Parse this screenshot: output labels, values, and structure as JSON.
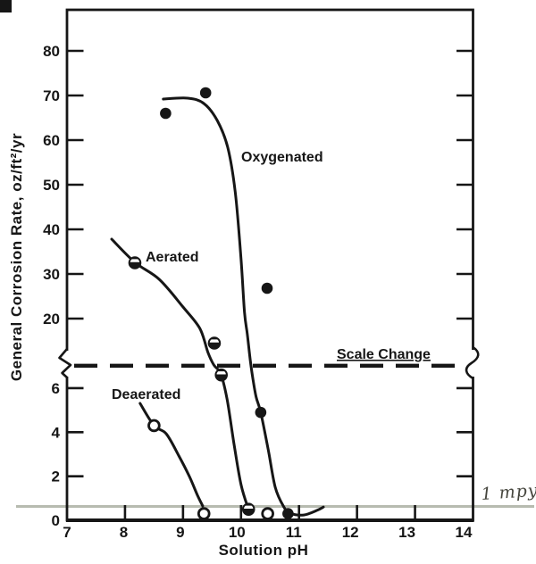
{
  "figure": {
    "background": "#ffffff",
    "ink": "#161616",
    "gray_line_color": "#b7bbb0",
    "handwriting_color": "#45453d"
  },
  "chart_data": {
    "type": "scatter",
    "title": "",
    "xlabel": "Solution pH",
    "ylabel": "General Corrosion Rate, oz/ft²/yr",
    "xlim": [
      7,
      14
    ],
    "x_ticks": [
      7,
      8,
      9,
      10,
      11,
      12,
      13,
      14
    ],
    "grid": false,
    "y_scale": {
      "unit": "oz/ft²/yr",
      "lower_ticks": [
        0,
        2,
        4,
        6
      ],
      "upper_ticks": [
        20,
        30,
        40,
        50,
        60,
        70,
        80
      ],
      "scale_break_between": [
        7,
        10
      ],
      "ylim_lower": [
        0,
        7
      ],
      "ylim_upper": [
        10,
        88
      ]
    },
    "reference_lines": [
      {
        "label": "1 mpy",
        "value": 0.63,
        "style": "solid-gray",
        "spans": "full-image-width"
      },
      {
        "label": "Scale Change",
        "value": "at-scale-break",
        "style": "heavy-dashed"
      }
    ],
    "series": [
      {
        "name": "Oxygenated",
        "marker": "filled-circle",
        "points": [
          [
            8.7,
            66
          ],
          [
            9.39,
            70.6
          ],
          [
            10.45,
            26.8
          ],
          [
            10.34,
            4.9
          ],
          [
            10.81,
            0.3
          ]
        ],
        "curve": [
          [
            8.66,
            69.2
          ],
          [
            9.08,
            69.4
          ],
          [
            9.36,
            68.2
          ],
          [
            9.59,
            64.4
          ],
          [
            9.77,
            58.4
          ],
          [
            9.9,
            48.4
          ],
          [
            10.0,
            33.4
          ],
          [
            10.06,
            21.4
          ],
          [
            10.11,
            16.4
          ],
          [
            10.16,
            10.6
          ],
          [
            10.2,
            6.5
          ],
          [
            10.26,
            5.6
          ],
          [
            10.34,
            4.9
          ],
          [
            10.47,
            3.2
          ],
          [
            10.59,
            1.5
          ],
          [
            10.74,
            0.6
          ],
          [
            10.85,
            0.32
          ],
          [
            11.08,
            0.24
          ],
          [
            11.31,
            0.45
          ],
          [
            11.42,
            0.6
          ]
        ]
      },
      {
        "name": "Aerated",
        "marker": "half-filled-circle",
        "points": [
          [
            8.17,
            32.5
          ],
          [
            9.54,
            14.5
          ],
          [
            9.66,
            6.6
          ],
          [
            10.13,
            0.5
          ]
        ],
        "curve": [
          [
            7.77,
            37.8
          ],
          [
            8.17,
            32.6
          ],
          [
            8.59,
            28.8
          ],
          [
            9.0,
            22.6
          ],
          [
            9.29,
            17.8
          ],
          [
            9.43,
            12.4
          ],
          [
            9.53,
            8.3
          ],
          [
            9.65,
            6.65
          ],
          [
            9.76,
            5.5
          ],
          [
            9.88,
            3.45
          ],
          [
            10.0,
            1.62
          ],
          [
            10.13,
            0.49
          ]
        ]
      },
      {
        "name": "Deaerated",
        "marker": "open-circle",
        "points": [
          [
            8.5,
            4.3
          ],
          [
            9.36,
            0.3
          ],
          [
            10.46,
            0.3
          ]
        ],
        "curve": [
          [
            8.26,
            5.31
          ],
          [
            8.5,
            4.3
          ],
          [
            8.71,
            3.93
          ],
          [
            8.93,
            2.92
          ],
          [
            9.11,
            1.99
          ],
          [
            9.25,
            1.13
          ],
          [
            9.34,
            0.65
          ]
        ]
      }
    ]
  }
}
